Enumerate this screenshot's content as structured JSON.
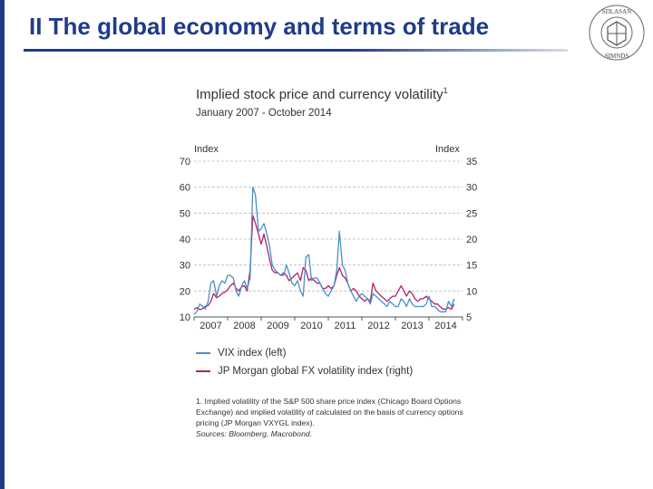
{
  "slide": {
    "title": "II The global economy and terms of trade",
    "logo_text_top": "SDLASAN",
    "logo_text_bottom": "SIMNDS"
  },
  "chart_data": {
    "type": "line",
    "title": "Implied stock price and currency volatility",
    "title_footnote_marker": "1",
    "subtitle": "January 2007 - October 2014",
    "ylabel_left": "Index",
    "ylabel_right": "Index",
    "ylim_left": [
      10,
      70
    ],
    "ylim_right": [
      5,
      35
    ],
    "yticks_left": [
      10,
      20,
      30,
      40,
      50,
      60,
      70
    ],
    "yticks_right": [
      5,
      10,
      15,
      20,
      25,
      30,
      35
    ],
    "xlim": [
      2007.0,
      2015.0
    ],
    "xticks": [
      "2007",
      "2008",
      "2009",
      "2010",
      "2011",
      "2012",
      "2013",
      "2014"
    ],
    "grid": true,
    "series": [
      {
        "name": "VIX index (left)",
        "axis": "left",
        "color": "#4a90c4",
        "x": [
          2007.0,
          2007.08,
          2007.17,
          2007.25,
          2007.33,
          2007.42,
          2007.5,
          2007.58,
          2007.67,
          2007.75,
          2007.83,
          2007.92,
          2008.0,
          2008.08,
          2008.17,
          2008.25,
          2008.33,
          2008.42,
          2008.5,
          2008.58,
          2008.67,
          2008.75,
          2008.83,
          2008.92,
          2009.0,
          2009.08,
          2009.17,
          2009.25,
          2009.33,
          2009.42,
          2009.5,
          2009.58,
          2009.67,
          2009.75,
          2009.83,
          2009.92,
          2010.0,
          2010.08,
          2010.17,
          2010.25,
          2010.33,
          2010.42,
          2010.5,
          2010.58,
          2010.67,
          2010.75,
          2010.83,
          2010.92,
          2011.0,
          2011.08,
          2011.17,
          2011.25,
          2011.33,
          2011.42,
          2011.5,
          2011.58,
          2011.67,
          2011.75,
          2011.83,
          2011.92,
          2012.0,
          2012.08,
          2012.17,
          2012.25,
          2012.33,
          2012.42,
          2012.5,
          2012.58,
          2012.67,
          2012.75,
          2012.83,
          2012.92,
          2013.0,
          2013.08,
          2013.17,
          2013.25,
          2013.33,
          2013.42,
          2013.5,
          2013.58,
          2013.67,
          2013.75,
          2013.83,
          2013.92,
          2014.0,
          2014.08,
          2014.17,
          2014.25,
          2014.33,
          2014.42,
          2014.5,
          2014.58,
          2014.67,
          2014.75
        ],
        "y": [
          11,
          12,
          15,
          14,
          13,
          16,
          23,
          24,
          18,
          22,
          24,
          23,
          26,
          26,
          25,
          20,
          18,
          22,
          24,
          21,
          25,
          60,
          57,
          43,
          44,
          46,
          42,
          37,
          30,
          28,
          27,
          26,
          26,
          30,
          27,
          23,
          22,
          24,
          20,
          18,
          33,
          34,
          24,
          25,
          25,
          23,
          21,
          19,
          18,
          20,
          22,
          28,
          43,
          30,
          28,
          23,
          20,
          18,
          16,
          18,
          19,
          18,
          17,
          15,
          19,
          18,
          17,
          16,
          15,
          14,
          16,
          15,
          14,
          14,
          17,
          16,
          14,
          17,
          15,
          14,
          14,
          14,
          14,
          15,
          18,
          14,
          14,
          13,
          12,
          12,
          12,
          16,
          14,
          17
        ]
      },
      {
        "name": "JP Morgan global FX volatility index (right)",
        "axis": "right",
        "color": "#b0226a",
        "x": [
          2007.0,
          2007.08,
          2007.17,
          2007.25,
          2007.33,
          2007.42,
          2007.5,
          2007.58,
          2007.67,
          2007.75,
          2007.83,
          2007.92,
          2008.0,
          2008.08,
          2008.17,
          2008.25,
          2008.33,
          2008.42,
          2008.5,
          2008.58,
          2008.67,
          2008.75,
          2008.83,
          2008.92,
          2009.0,
          2009.08,
          2009.17,
          2009.25,
          2009.33,
          2009.42,
          2009.5,
          2009.58,
          2009.67,
          2009.75,
          2009.83,
          2009.92,
          2010.0,
          2010.08,
          2010.17,
          2010.25,
          2010.33,
          2010.42,
          2010.5,
          2010.58,
          2010.67,
          2010.75,
          2010.83,
          2010.92,
          2011.0,
          2011.08,
          2011.17,
          2011.25,
          2011.33,
          2011.42,
          2011.5,
          2011.58,
          2011.67,
          2011.75,
          2011.83,
          2011.92,
          2012.0,
          2012.08,
          2012.17,
          2012.25,
          2012.33,
          2012.42,
          2012.5,
          2012.58,
          2012.67,
          2012.75,
          2012.83,
          2012.92,
          2013.0,
          2013.08,
          2013.17,
          2013.25,
          2013.33,
          2013.42,
          2013.5,
          2013.58,
          2013.67,
          2013.75,
          2013.83,
          2013.92,
          2014.0,
          2014.08,
          2014.17,
          2014.25,
          2014.33,
          2014.42,
          2014.5,
          2014.58,
          2014.67,
          2014.75
        ],
        "y": [
          6.5,
          6.8,
          6.4,
          6.6,
          7.0,
          7.2,
          8.0,
          9.5,
          8.7,
          9.0,
          9.5,
          9.8,
          10.2,
          11.0,
          11.5,
          10.5,
          10.0,
          10.8,
          11.0,
          10.0,
          14.0,
          24.5,
          23.0,
          21.0,
          19.0,
          21.0,
          18.5,
          16.0,
          14.0,
          13.5,
          13.5,
          13.0,
          13.5,
          13.0,
          12.0,
          12.5,
          13.0,
          13.5,
          12.0,
          14.5,
          14.0,
          12.0,
          12.5,
          12.0,
          11.5,
          11.5,
          10.5,
          10.5,
          11.0,
          10.5,
          11.0,
          13.0,
          14.5,
          13.0,
          12.5,
          11.5,
          10.0,
          10.5,
          10.0,
          9.0,
          8.5,
          8.0,
          8.5,
          8.0,
          11.5,
          10.0,
          9.5,
          9.0,
          8.5,
          8.0,
          8.5,
          9.0,
          9.0,
          10.0,
          11.0,
          10.0,
          9.0,
          10.0,
          9.5,
          8.5,
          8.0,
          8.5,
          8.5,
          9.0,
          8.5,
          8.0,
          7.5,
          7.5,
          7.0,
          6.5,
          6.5,
          6.8,
          6.5,
          7.5
        ]
      }
    ],
    "footnote": "1. Implied volatility of the S&P 500 share price index (Chicago Board Options Exchange) and implied volatility of calculated on the basis of currency options pricing (JP Morgan VXYGL index).",
    "sources": "Sources: Bloomberg, Macrobond."
  }
}
